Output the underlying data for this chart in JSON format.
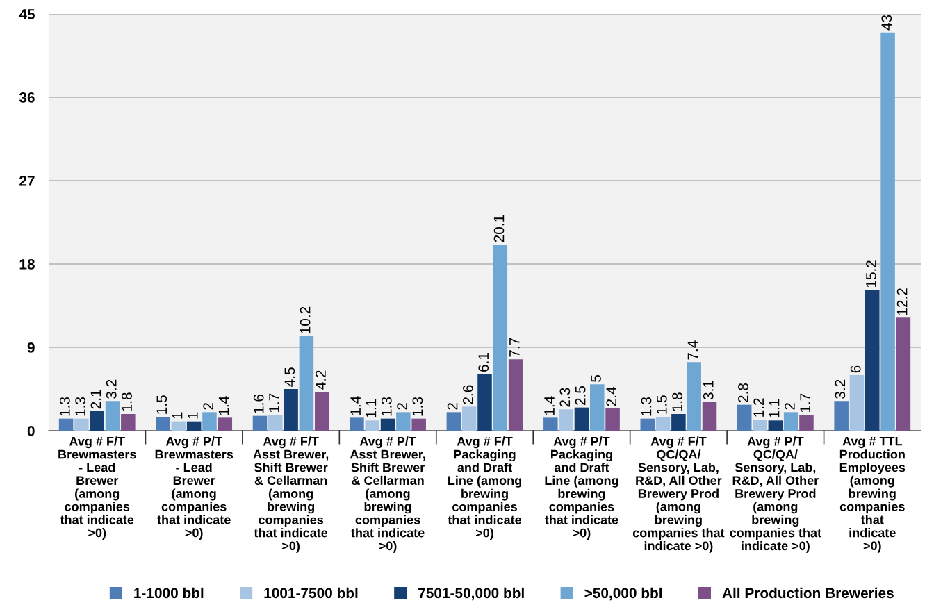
{
  "chart_data": {
    "type": "bar",
    "categories": [
      "Avg # F/T\nBrewmasters\n- Lead\nBrewer\n(among\ncompanies\nthat indicate\n>0)",
      "Avg # P/T\nBrewmasters\n- Lead\nBrewer\n(among\ncompanies\nthat indicate\n>0)",
      "Avg # F/T\nAsst Brewer,\nShift Brewer\n& Cellarman\n(among\nbrewing\ncompanies\nthat indicate\n>0)",
      "Avg # P/T\nAsst Brewer,\nShift Brewer\n& Cellarman\n(among\nbrewing\ncompanies\nthat indicate\n>0)",
      "Avg # F/T\nPackaging\nand Draft\nLine (among\nbrewing\ncompanies\nthat indicate\n>0)",
      "Avg # P/T\nPackaging\nand Draft\nLine (among\nbrewing\ncompanies\nthat indicate\n>0)",
      "Avg # F/T\nQC/QA/\nSensory, Lab,\nR&D, All Other\nBrewery Prod\n(among\nbrewing\ncompanies that\nindicate >0)",
      "Avg # P/T\nQC/QA/\nSensory, Lab,\nR&D, All Other\nBrewery Prod\n(among\nbrewing\ncompanies that\nindicate >0)",
      "Avg # TTL\nProduction\nEmployees\n(among\nbrewing\ncompanies\nthat\nindicate\n>0)"
    ],
    "series": [
      {
        "name": "1-1000 bbl",
        "color": "#4f7db8",
        "values": [
          1.3,
          1.5,
          1.6,
          1.4,
          2,
          1.4,
          1.3,
          2.8,
          3.2
        ]
      },
      {
        "name": "1001-7500 bbl",
        "color": "#a7c5e3",
        "values": [
          1.3,
          1,
          1.7,
          1.1,
          2.6,
          2.3,
          1.5,
          1.2,
          6
        ]
      },
      {
        "name": "7501-50,000 bbl",
        "color": "#163f73",
        "values": [
          2.1,
          1,
          4.5,
          1.3,
          6.1,
          2.5,
          1.8,
          1.1,
          15.2
        ]
      },
      {
        "name": ">50,000 bbl",
        "color": "#6ea7d3",
        "values": [
          3.2,
          2,
          10.2,
          2,
          20.1,
          5,
          7.4,
          2,
          43
        ]
      },
      {
        "name": "All Production Breweries",
        "color": "#7d5088",
        "values": [
          1.8,
          1.4,
          4.2,
          1.3,
          7.7,
          2.4,
          3.1,
          1.7,
          12.2
        ]
      }
    ],
    "ylim": [
      0,
      45
    ],
    "yticks": [
      0,
      9,
      18,
      27,
      36,
      45
    ],
    "grid": "y",
    "legend": "bottom",
    "data_labels": true
  }
}
